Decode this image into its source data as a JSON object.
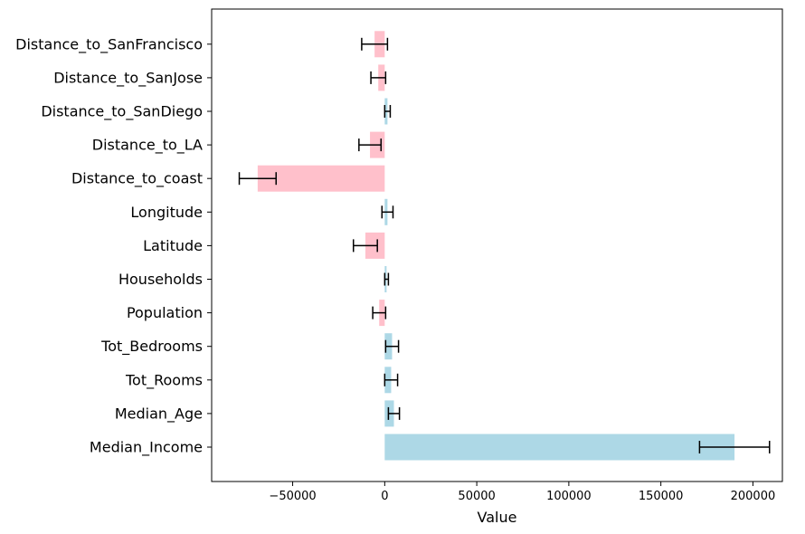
{
  "chart_data": {
    "type": "bar",
    "orientation": "horizontal",
    "xlabel": "Value",
    "ylabel": "",
    "title": "",
    "xlim": [
      -94000,
      216000
    ],
    "xticks": [
      -50000,
      0,
      50000,
      100000,
      150000,
      200000
    ],
    "xtick_labels": [
      "−50000",
      "0",
      "50000",
      "100000",
      "150000",
      "200000"
    ],
    "grid": false,
    "categories": [
      "Median_Income",
      "Median_Age",
      "Tot_Rooms",
      "Tot_Bedrooms",
      "Population",
      "Households",
      "Latitude",
      "Longitude",
      "Distance_to_coast",
      "Distance_to_LA",
      "Distance_to_SanDiego",
      "Distance_to_SanJose",
      "Distance_to_SanFrancisco"
    ],
    "values": [
      190000,
      5000,
      3500,
      4000,
      -3000,
      1000,
      -10500,
      1500,
      -69000,
      -8000,
      1500,
      -3500,
      -5500
    ],
    "errors": [
      19000,
      3000,
      3500,
      3500,
      3500,
      1000,
      6500,
      3000,
      10000,
      6000,
      1500,
      4000,
      7000
    ],
    "colors": {
      "positive": "#add8e6",
      "negative": "#ffc0cb",
      "error_bar": "#000000"
    }
  }
}
